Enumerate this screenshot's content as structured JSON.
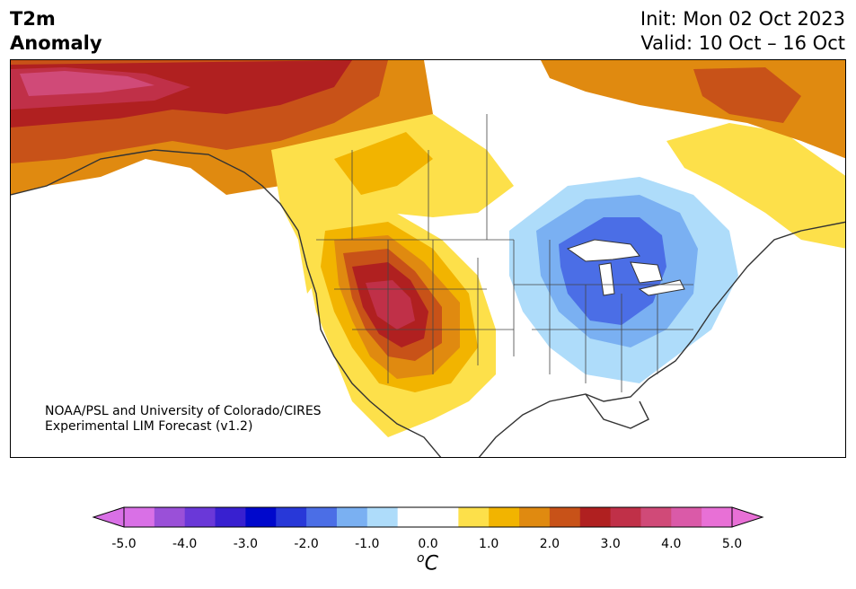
{
  "title": {
    "line1": "T2m",
    "line2": "Anomaly"
  },
  "init_label": "Init: Mon 02 Oct 2023",
  "valid_label": "Valid: 10 Oct – 16 Oct",
  "credit": {
    "line1": "NOAA/PSL and University of Colorado/CIRES",
    "line2": "Experimental LIM Forecast (v1.2)"
  },
  "colorbar": {
    "units_prefix": "o",
    "units_main": "C",
    "extend": "both",
    "range": [
      -5.0,
      5.0
    ],
    "step": 0.5,
    "ticks": [
      "-5.0",
      "-4.0",
      "-3.0",
      "-2.0",
      "-1.0",
      "0.0",
      "1.0",
      "2.0",
      "3.0",
      "4.0",
      "5.0"
    ],
    "low_extend_color": "#d970e6",
    "high_extend_color": "#e870d6",
    "bins": [
      {
        "from": -5.0,
        "to": -4.5,
        "color": "#d970e6"
      },
      {
        "from": -4.5,
        "to": -4.0,
        "color": "#9a50d8"
      },
      {
        "from": -4.0,
        "to": -3.5,
        "color": "#6a38d8"
      },
      {
        "from": -3.5,
        "to": -3.0,
        "color": "#3820d0"
      },
      {
        "from": -3.0,
        "to": -2.5,
        "color": "#0008cc"
      },
      {
        "from": -2.5,
        "to": -2.0,
        "color": "#2838d8"
      },
      {
        "from": -2.0,
        "to": -1.5,
        "color": "#4b6ee6"
      },
      {
        "from": -1.5,
        "to": -1.0,
        "color": "#7ab0f2"
      },
      {
        "from": -1.0,
        "to": -0.5,
        "color": "#aedcfa"
      },
      {
        "from": -0.5,
        "to": 0.0,
        "color": "#ffffff"
      },
      {
        "from": 0.0,
        "to": 0.5,
        "color": "#ffffff"
      },
      {
        "from": 0.5,
        "to": 1.0,
        "color": "#fde04a"
      },
      {
        "from": 1.0,
        "to": 1.5,
        "color": "#f2b400"
      },
      {
        "from": 1.5,
        "to": 2.0,
        "color": "#e08a10"
      },
      {
        "from": 2.0,
        "to": 2.5,
        "color": "#c85218"
      },
      {
        "from": 2.5,
        "to": 3.0,
        "color": "#b02020"
      },
      {
        "from": 3.0,
        "to": 3.5,
        "color": "#c03048"
      },
      {
        "from": 3.5,
        "to": 4.0,
        "color": "#d04a78"
      },
      {
        "from": 4.0,
        "to": 4.5,
        "color": "#da5aa8"
      },
      {
        "from": 4.5,
        "to": 5.0,
        "color": "#e870d6"
      }
    ]
  }
}
